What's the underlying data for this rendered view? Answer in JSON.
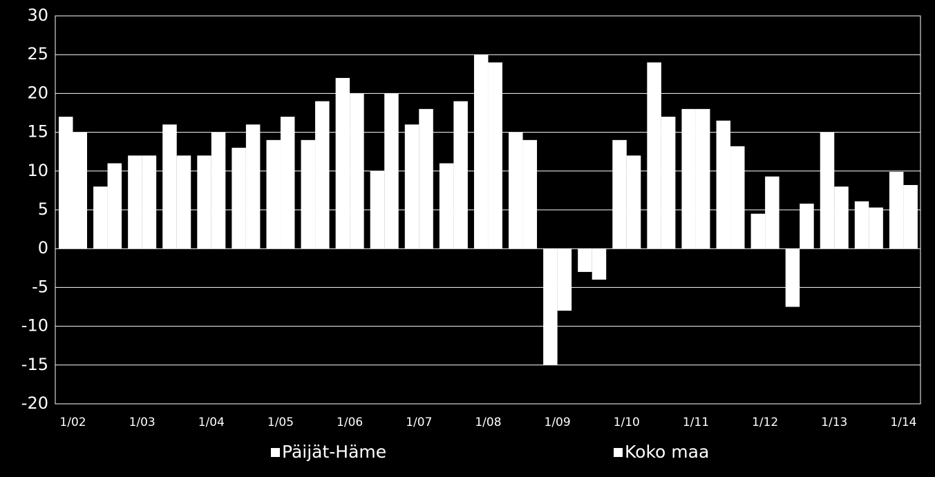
{
  "chart_data": {
    "type": "bar",
    "categories": [
      "1/02",
      null,
      "1/03",
      null,
      "1/04",
      null,
      "1/05",
      null,
      "1/06",
      null,
      "1/07",
      null,
      "1/08",
      null,
      "1/09",
      null,
      "1/10",
      null,
      "1/11",
      null,
      "1/12",
      null,
      "1/13",
      null,
      "1/14"
    ],
    "series": [
      {
        "name": "Päijät-Häme",
        "color": "#ffffff",
        "values": [
          17,
          8,
          12,
          16,
          12,
          13,
          14,
          14,
          22,
          10,
          16,
          11,
          25,
          15,
          -15,
          -3,
          14,
          24,
          18,
          16.5,
          4.5,
          -7.5,
          15,
          6.1,
          9.9
        ]
      },
      {
        "name": "Koko maa",
        "color": "#ffffff",
        "values": [
          15,
          11,
          12,
          12,
          15,
          16,
          17,
          19,
          20,
          20,
          18,
          19,
          24,
          14,
          -8,
          -4,
          12,
          17,
          18,
          13.2,
          9.3,
          5.8,
          8,
          5.3,
          8.2
        ]
      }
    ],
    "ylim": [
      -20,
      30
    ],
    "yticks": [
      -20,
      -15,
      -10,
      -5,
      0,
      5,
      10,
      15,
      20,
      25,
      30
    ],
    "grid": true,
    "legend": "bottom"
  }
}
